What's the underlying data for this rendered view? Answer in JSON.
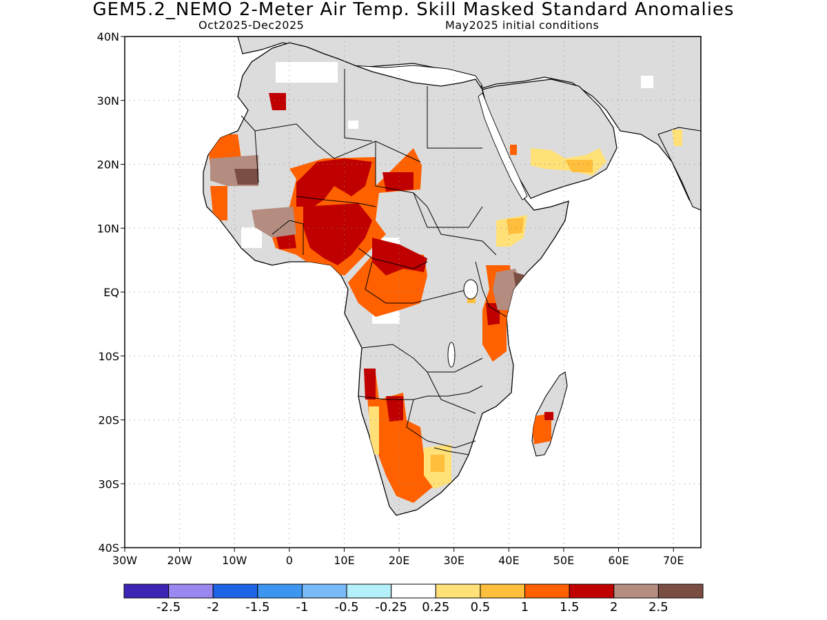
{
  "title": "GEM5.2_NEMO 2-Meter Air Temp. Skill Masked Standard Anomalies",
  "subtitle_left": "Oct2025-Dec2025",
  "subtitle_right": "May2025 initial conditions",
  "axes": {
    "lon_labels": [
      "30W",
      "20W",
      "10W",
      "0",
      "10E",
      "20E",
      "30E",
      "40E",
      "50E",
      "60E",
      "70E"
    ],
    "lat_labels": [
      "40N",
      "30N",
      "20N",
      "10N",
      "EQ",
      "10S",
      "20S",
      "30S",
      "40S"
    ],
    "lon_range": [
      -30,
      75
    ],
    "lat_range": [
      -40,
      40
    ],
    "grid": "dotted"
  },
  "colorbar": {
    "colors": [
      "#3c23b4",
      "#9a87f0",
      "#1f64e6",
      "#3c96f0",
      "#78b9f8",
      "#b4f0fa",
      "#ffffff",
      "#ffe178",
      "#ffbe3c",
      "#ff6000",
      "#c00000",
      "#b48c80",
      "#7a4e42"
    ],
    "labels": [
      "-2.5",
      "-2",
      "-1.5",
      "-1",
      "-0.5",
      "-0.25",
      "0.25",
      "0.5",
      "1",
      "1.5",
      "2",
      "2.5"
    ]
  },
  "colors": {
    "land_no_skill": "#dcdcdc",
    "ocean": "#ffffff",
    "coast": "#000000"
  }
}
